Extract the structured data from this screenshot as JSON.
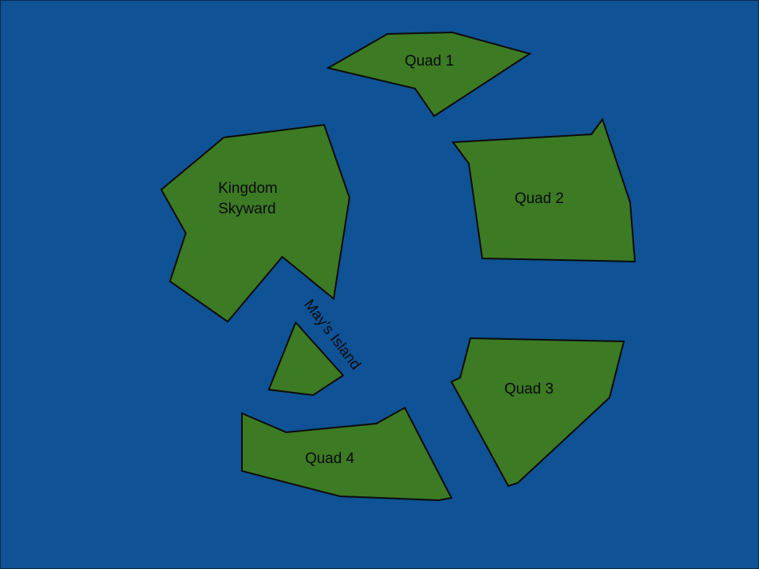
{
  "map": {
    "colors": {
      "ocean": "#0f5295",
      "land": "#3c7a24",
      "border": "#0b0b0b",
      "label": "#0b0b0b"
    },
    "regions": {
      "quad1": {
        "name": "Quad 1"
      },
      "quad2": {
        "name": "Quad 2"
      },
      "quad3": {
        "name": "Quad 3"
      },
      "quad4": {
        "name": "Quad 4"
      },
      "kingdom": {
        "name_line1": "Kingdom",
        "name_line2": "Skyward"
      },
      "mays_island": {
        "name": "May’s Island"
      }
    }
  }
}
